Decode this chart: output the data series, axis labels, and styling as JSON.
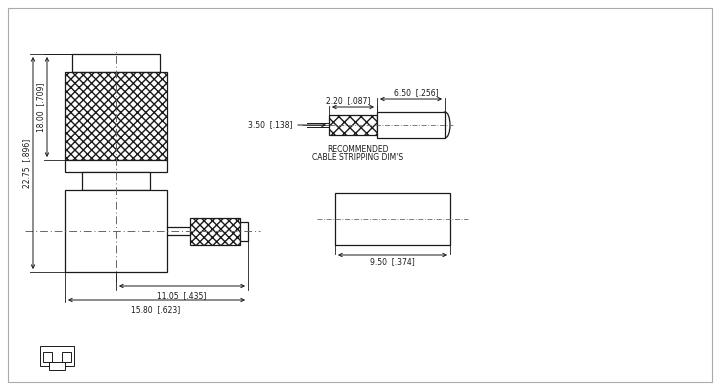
{
  "bg_color": "#ffffff",
  "line_color": "#1a1a1a",
  "centerline_color": "#666666",
  "annotations": {
    "dim_22_75": "22.75  [.896]",
    "dim_18_00": "18.00  [.709]",
    "dim_11_05": "11.05  [.435]",
    "dim_15_80": "15.80  [.623]",
    "dim_3_50": "3.50  [.138]",
    "dim_2_20": "2.20  [.087]",
    "dim_6_50": "6.50  [.256]",
    "dim_9_50": "9.50  [.374]",
    "cable_label1": "RECOMMENDED",
    "cable_label2": "CABLE STRIPPING DIM'S"
  }
}
